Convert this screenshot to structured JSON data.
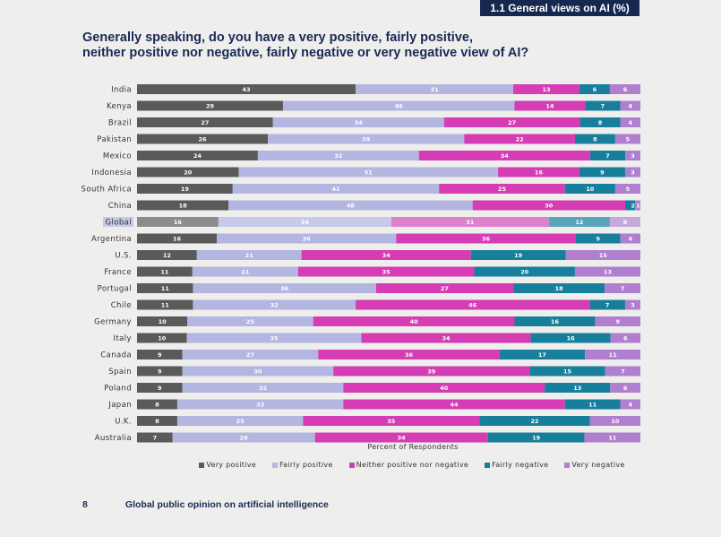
{
  "badge": "1.1 General views on AI (%)",
  "title_lines": [
    "Generally speaking, do you have a very positive, fairly positive,",
    "neither positive nor negative, fairly negative or very negative view of AI?"
  ],
  "footer": {
    "page_number": "8",
    "text": "Global public opinion on artificial intelligence"
  },
  "chart_data": {
    "type": "bar",
    "orientation": "horizontal",
    "stacked": true,
    "xlabel": "Percent of Respondents",
    "legend_position": "bottom",
    "highlight_category": "Global",
    "categories": [
      "India",
      "Kenya",
      "Brazil",
      "Pakistan",
      "Mexico",
      "Indonesia",
      "South Africa",
      "China",
      "Global",
      "Argentina",
      "U.S.",
      "France",
      "Portugal",
      "Chile",
      "Germany",
      "Italy",
      "Canada",
      "Spain",
      "Poland",
      "Japan",
      "U.K.",
      "Australia"
    ],
    "series": [
      {
        "name": "Very positive",
        "color": "#5a5a5a",
        "highlight_color": "#8c8c8c",
        "values": [
          43,
          29,
          27,
          26,
          24,
          20,
          19,
          18,
          16,
          16,
          12,
          11,
          11,
          11,
          10,
          10,
          9,
          9,
          9,
          8,
          8,
          7
        ]
      },
      {
        "name": "Fairly positive",
        "color": "#b3b6e0",
        "highlight_color": "#c6c9e8",
        "values": [
          31,
          46,
          34,
          39,
          32,
          51,
          41,
          48,
          34,
          36,
          21,
          21,
          36,
          32,
          25,
          35,
          27,
          30,
          32,
          33,
          25,
          28
        ]
      },
      {
        "name": "Neither positive nor negative",
        "color": "#d63cb4",
        "highlight_color": "#e07fcc",
        "values": [
          13,
          14,
          27,
          22,
          34,
          16,
          25,
          30,
          31,
          36,
          34,
          35,
          27,
          46,
          40,
          34,
          36,
          39,
          40,
          44,
          35,
          34
        ]
      },
      {
        "name": "Fairly negative",
        "color": "#177f9c",
        "highlight_color": "#5aa5ba",
        "values": [
          6,
          7,
          8,
          8,
          7,
          9,
          10,
          2,
          12,
          9,
          19,
          20,
          18,
          7,
          16,
          16,
          17,
          15,
          13,
          11,
          22,
          19
        ]
      },
      {
        "name": "Very negative",
        "color": "#b07fcf",
        "highlight_color": "#c8a8dc",
        "values": [
          6,
          4,
          4,
          5,
          3,
          3,
          5,
          1,
          6,
          4,
          15,
          13,
          7,
          3,
          9,
          6,
          11,
          7,
          6,
          4,
          10,
          11
        ]
      }
    ]
  }
}
